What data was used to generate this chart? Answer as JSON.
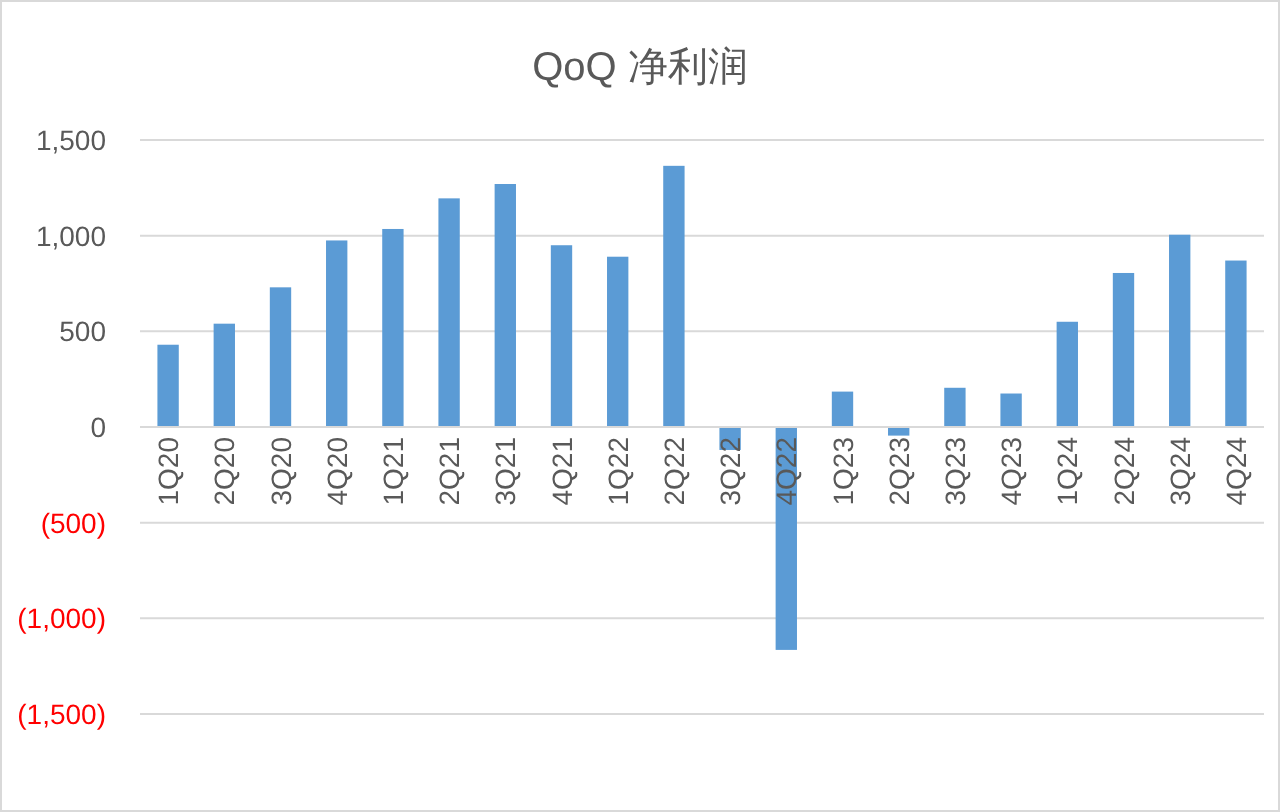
{
  "chart_data": {
    "type": "bar",
    "title": "QoQ 净利润",
    "categories": [
      "1Q20",
      "2Q20",
      "3Q20",
      "4Q20",
      "1Q21",
      "2Q21",
      "3Q21",
      "4Q21",
      "1Q22",
      "2Q22",
      "3Q22",
      "4Q22",
      "1Q23",
      "2Q23",
      "3Q23",
      "4Q23",
      "1Q24",
      "2Q24",
      "3Q24",
      "4Q24"
    ],
    "values": [
      430,
      540,
      730,
      975,
      1035,
      1195,
      1270,
      950,
      890,
      1365,
      -120,
      -1165,
      185,
      -45,
      205,
      175,
      550,
      805,
      1005,
      870
    ],
    "color": "#5b9bd5",
    "ylim": [
      -1500,
      1500
    ],
    "yticks": [
      {
        "value": -1500,
        "label": "(1,500)"
      },
      {
        "value": -1000,
        "label": "(1,000)"
      },
      {
        "value": -500,
        "label": "(500)"
      },
      0,
      {
        "value": 500,
        "label": "500"
      },
      {
        "value": 1000,
        "label": "1,000"
      },
      {
        "value": 1500,
        "label": "1,500"
      }
    ],
    "grid": "y"
  }
}
